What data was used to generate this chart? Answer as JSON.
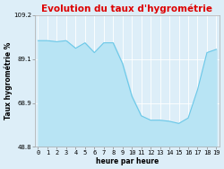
{
  "title": "Evolution du taux d'hygrométrie",
  "xlabel": "heure par heure",
  "ylabel": "Taux hygrométrie %",
  "ylim": [
    48.8,
    109.2
  ],
  "yticks": [
    48.8,
    68.9,
    89.1,
    109.2
  ],
  "xticks": [
    0,
    1,
    2,
    3,
    4,
    5,
    6,
    7,
    8,
    9,
    10,
    11,
    12,
    13,
    14,
    15,
    16,
    17,
    18,
    19
  ],
  "hours": [
    0,
    1,
    2,
    3,
    4,
    5,
    6,
    7,
    8,
    9,
    10,
    11,
    12,
    13,
    14,
    15,
    16,
    17,
    18,
    19
  ],
  "values": [
    97.5,
    97.5,
    97.0,
    97.5,
    94.0,
    96.5,
    92.0,
    96.5,
    96.5,
    87.0,
    72.0,
    63.0,
    61.0,
    61.0,
    60.5,
    59.5,
    62.0,
    75.0,
    92.0,
    93.5
  ],
  "line_color": "#6cc8e8",
  "fill_color": "#b8e4f4",
  "title_color": "#dd0000",
  "background_color": "#ddeef8",
  "plot_bg_color": "#ddeef8",
  "grid_color": "#ffffff",
  "spine_color": "#aaaaaa",
  "title_fontsize": 7.5,
  "label_fontsize": 5.5,
  "tick_fontsize": 5.0,
  "xlim": [
    -0.3,
    19.3
  ]
}
